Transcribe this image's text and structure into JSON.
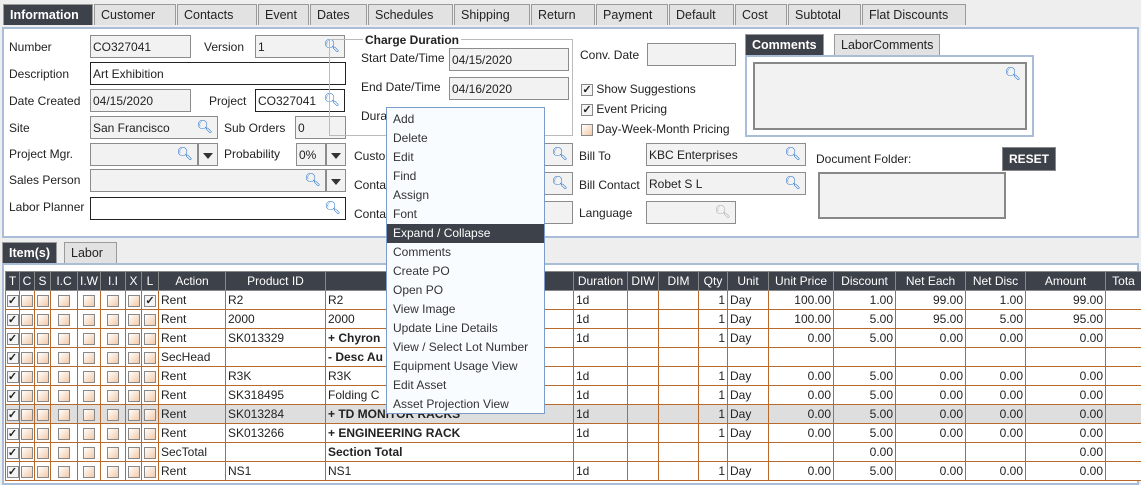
{
  "tabs": [
    "Information",
    "Customer",
    "Contacts",
    "Event",
    "Dates",
    "Schedules",
    "Shipping",
    "Return",
    "Payment",
    "Default",
    "Cost",
    "Subtotal",
    "Flat Discounts"
  ],
  "form": {
    "number_label": "Number",
    "number": "CO327041",
    "version_label": "Version",
    "version": "1",
    "description_label": "Description",
    "description": "Art Exhibition",
    "date_created_label": "Date Created",
    "date_created": "04/15/2020",
    "project_label": "Project",
    "project": "CO327041",
    "site_label": "Site",
    "site": "San Francisco",
    "sub_orders_label": "Sub Orders",
    "sub_orders": "0",
    "project_mgr_label": "Project Mgr.",
    "project_mgr": "",
    "probability_label": "Probability",
    "probability": "0%",
    "sales_person_label": "Sales Person",
    "sales_person": "",
    "labor_planner_label": "Labor Planner",
    "labor_planner": "",
    "charge_duration_title": "Charge Duration",
    "start_label": "Start Date/Time",
    "start": "04/15/2020",
    "end_label": "End Date/Time",
    "end": "04/16/2020",
    "duration_label": "Dura",
    "customer_label": "Custo",
    "contact1_label": "Conta",
    "contact2_label": "Conta",
    "conv_date_label": "Conv. Date",
    "conv_date": "",
    "show_suggestions": "Show Suggestions",
    "event_pricing": "Event Pricing",
    "dwm_pricing": "Day-Week-Month Pricing",
    "bill_to_label": "Bill To",
    "bill_to": "KBC Enterprises",
    "bill_contact_label": "Bill Contact",
    "bill_contact": "Robet S L",
    "language_label": "Language",
    "language": "",
    "comments_tabs": [
      "Comments",
      "LaborComments"
    ],
    "document_folder_label": "Document Folder:",
    "reset_label": "RESET"
  },
  "item_tabs": [
    "Item(s)",
    "Labor"
  ],
  "table": {
    "headers": [
      "T",
      "C",
      "S",
      "I.C",
      "I.W",
      "I.I",
      "X",
      "L",
      "Action",
      "Product ID",
      "",
      "Duration",
      "DIW",
      "DIM",
      "Qty",
      "Unit",
      "Unit Price",
      "Discount",
      "Net Each",
      "Net Disc",
      "Amount",
      "Tota"
    ],
    "rows": [
      {
        "l": true,
        "action": "Rent",
        "pid": "R2",
        "desc": "R2",
        "bold": false,
        "dur": "1d",
        "qty": "1",
        "unit": "Day",
        "up": "100.00",
        "disc": "1.00",
        "ne": "99.00",
        "nd": "1.00",
        "amt": "99.00"
      },
      {
        "l": false,
        "action": "Rent",
        "pid": "2000",
        "desc": "2000",
        "bold": false,
        "dur": "1d",
        "qty": "1",
        "unit": "Day",
        "up": "100.00",
        "disc": "5.00",
        "ne": "95.00",
        "nd": "5.00",
        "amt": "95.00"
      },
      {
        "l": false,
        "action": "Rent",
        "pid": "SK013329",
        "desc": "+  Chyron",
        "bold": true,
        "dur": "1d",
        "qty": "1",
        "unit": "Day",
        "up": "0.00",
        "disc": "5.00",
        "ne": "0.00",
        "nd": "0.00",
        "amt": "0.00"
      },
      {
        "l": false,
        "action": "SecHead",
        "pid": "",
        "desc": "-  Desc Au",
        "bold": true,
        "dur": "",
        "qty": "",
        "unit": "",
        "up": "",
        "disc": "",
        "ne": "",
        "nd": "",
        "amt": ""
      },
      {
        "l": false,
        "action": "Rent",
        "pid": "R3K",
        "desc": "R3K",
        "bold": false,
        "dur": "1d",
        "qty": "1",
        "unit": "Day",
        "up": "0.00",
        "disc": "5.00",
        "ne": "0.00",
        "nd": "0.00",
        "amt": "0.00"
      },
      {
        "l": false,
        "action": "Rent",
        "pid": "SK318495",
        "desc": "Folding C",
        "bold": false,
        "dur": "1d",
        "qty": "1",
        "unit": "Day",
        "up": "0.00",
        "disc": "5.00",
        "ne": "0.00",
        "nd": "0.00",
        "amt": "0.00"
      },
      {
        "l": false,
        "action": "Rent",
        "pid": "SK013284",
        "desc": "+  TD MONITOR RACKS",
        "bold": true,
        "dur": "1d",
        "qty": "1",
        "unit": "Day",
        "up": "0.00",
        "disc": "5.00",
        "ne": "0.00",
        "nd": "0.00",
        "amt": "0.00",
        "selected": true
      },
      {
        "l": false,
        "action": "Rent",
        "pid": "SK013266",
        "desc": "+  ENGINEERING RACK",
        "bold": true,
        "dur": "1d",
        "qty": "1",
        "unit": "Day",
        "up": "0.00",
        "disc": "5.00",
        "ne": "0.00",
        "nd": "0.00",
        "amt": "0.00"
      },
      {
        "l": false,
        "action": "SecTotal",
        "pid": "",
        "desc": "Section Total",
        "bold": true,
        "dur": "",
        "qty": "",
        "unit": "",
        "up": "",
        "disc": "0.00",
        "ne": "",
        "nd": "",
        "amt": "0.00"
      },
      {
        "l": false,
        "action": "Rent",
        "pid": "NS1",
        "desc": "NS1",
        "bold": false,
        "dur": "1d",
        "qty": "1",
        "unit": "Day",
        "up": "0.00",
        "disc": "5.00",
        "ne": "0.00",
        "nd": "0.00",
        "amt": "0.00"
      }
    ]
  },
  "context_menu": {
    "items": [
      "Add",
      "Delete",
      "Edit",
      "Find",
      "Assign",
      "Font",
      "Expand / Collapse",
      "Comments",
      "Create PO",
      "Open PO",
      "View Image",
      "Update Line Details",
      "View / Select Lot Number",
      "Equipment Usage View",
      "Edit Asset",
      "Asset Projection View"
    ],
    "highlighted": "Expand / Collapse"
  }
}
